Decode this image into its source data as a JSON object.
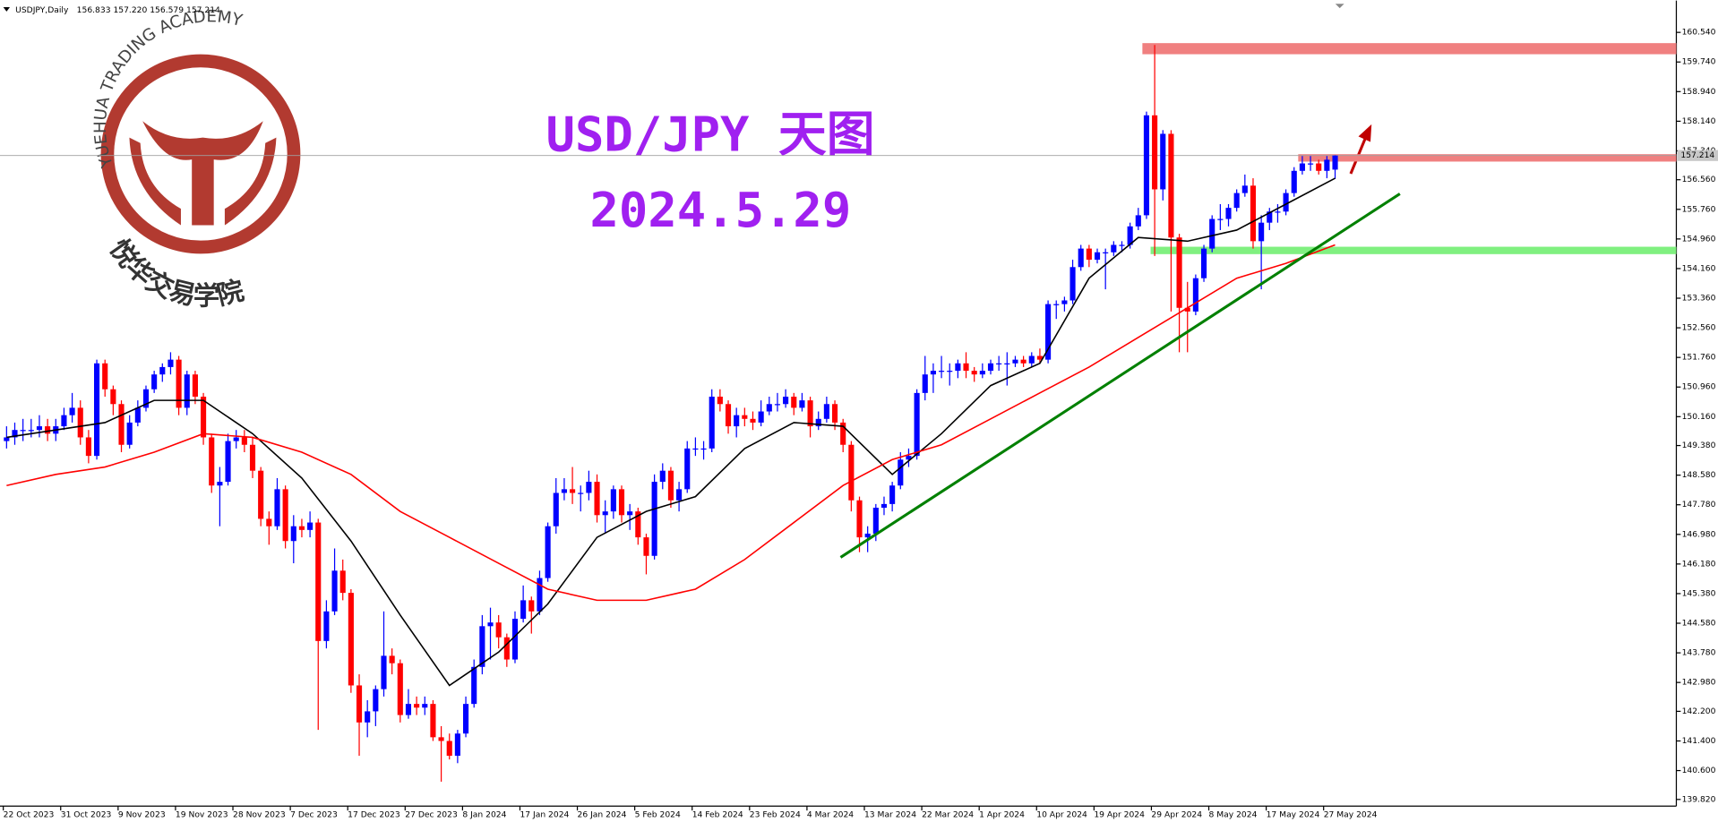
{
  "chart_data": {
    "type": "candlestick",
    "symbol": "USDJPY,Daily",
    "ohlc_label": "156.833 157.220 156.579 157.214",
    "title": "USD/JPY 天图",
    "subtitle": "2024.5.29",
    "watermark": {
      "arc_text": "YUEHUA TRADING ACADEMY",
      "cn_text": "悦华交易学院"
    },
    "up_color": "#0000ff",
    "down_color": "#ff0000",
    "categories": [
      "22 Oct 2023",
      null,
      null,
      null,
      null,
      null,
      null,
      "31 Oct 2023",
      null,
      null,
      null,
      null,
      null,
      null,
      "9 Nov 2023",
      null,
      null,
      null,
      null,
      null,
      null,
      "19 Nov 2023",
      null,
      null,
      null,
      null,
      null,
      null,
      "28 Nov 2023",
      null,
      null,
      null,
      null,
      null,
      null,
      "7 Dec 2023",
      null,
      null,
      null,
      null,
      null,
      null,
      "17 Dec 2023",
      null,
      null,
      null,
      null,
      null,
      null,
      "27 Dec 2023",
      null,
      null,
      null,
      null,
      null,
      null,
      "8 Jan 2024",
      null,
      null,
      null,
      null,
      null,
      null,
      "17 Jan 2024",
      null,
      null,
      null,
      null,
      null,
      null,
      "26 Jan 2024",
      null,
      null,
      null,
      null,
      null,
      null,
      "5 Feb 2024",
      null,
      null,
      null,
      null,
      null,
      null,
      "14 Feb 2024",
      null,
      null,
      null,
      null,
      null,
      null,
      "23 Feb 2024",
      null,
      null,
      null,
      null,
      null,
      null,
      "4 Mar 2024",
      null,
      null,
      null,
      null,
      null,
      null,
      "13 Mar 2024",
      null,
      null,
      null,
      null,
      null,
      null,
      "22 Mar 2024",
      null,
      null,
      null,
      null,
      null,
      null,
      "1 Apr 2024",
      null,
      null,
      null,
      null,
      null,
      null,
      "10 Apr 2024",
      null,
      null,
      null,
      null,
      null,
      null,
      "19 Apr 2024",
      null,
      null,
      null,
      null,
      null,
      null,
      "29 Apr 2024",
      null,
      null,
      null,
      null,
      null,
      null,
      "8 May 2024",
      null,
      null,
      null,
      null,
      null,
      null,
      "17 May 2024",
      null,
      null,
      null,
      null,
      null,
      null,
      "27 May 2024",
      null
    ],
    "candles": [
      [
        149.5,
        149.9,
        149.3,
        149.6
      ],
      [
        149.6,
        150.0,
        149.4,
        149.8
      ],
      [
        149.8,
        150.1,
        149.5,
        149.8
      ],
      [
        149.8,
        150.1,
        149.6,
        149.8
      ],
      [
        149.8,
        150.2,
        149.6,
        149.9
      ],
      [
        149.9,
        150.1,
        149.5,
        149.7
      ],
      [
        149.7,
        150.1,
        149.5,
        149.9
      ],
      [
        149.9,
        150.4,
        149.8,
        150.2
      ],
      [
        150.2,
        150.8,
        150.0,
        150.4
      ],
      [
        150.4,
        150.6,
        149.4,
        149.6
      ],
      [
        149.6,
        149.8,
        148.9,
        149.1
      ],
      [
        149.1,
        151.7,
        149.0,
        151.6
      ],
      [
        151.6,
        151.7,
        150.7,
        150.9
      ],
      [
        150.9,
        151.0,
        150.2,
        150.5
      ],
      [
        150.5,
        150.6,
        149.2,
        149.4
      ],
      [
        149.4,
        150.2,
        149.3,
        150.0
      ],
      [
        150.0,
        150.6,
        149.9,
        150.4
      ],
      [
        150.4,
        151.0,
        150.3,
        150.9
      ],
      [
        150.9,
        151.4,
        150.8,
        151.3
      ],
      [
        151.3,
        151.6,
        151.1,
        151.5
      ],
      [
        151.5,
        151.9,
        151.3,
        151.7
      ],
      [
        151.7,
        151.8,
        150.2,
        150.4
      ],
      [
        150.4,
        151.4,
        150.2,
        151.3
      ],
      [
        151.3,
        151.4,
        150.5,
        150.7
      ],
      [
        150.7,
        150.8,
        149.4,
        149.6
      ],
      [
        149.6,
        149.7,
        148.1,
        148.3
      ],
      [
        148.3,
        148.8,
        147.2,
        148.4
      ],
      [
        148.4,
        149.7,
        148.3,
        149.5
      ],
      [
        149.5,
        149.8,
        149.3,
        149.6
      ],
      [
        149.6,
        149.8,
        149.2,
        149.4
      ],
      [
        149.4,
        149.6,
        148.5,
        148.7
      ],
      [
        148.7,
        148.8,
        147.2,
        147.4
      ],
      [
        147.4,
        147.6,
        146.7,
        147.2
      ],
      [
        147.2,
        148.5,
        147.1,
        148.2
      ],
      [
        148.2,
        148.3,
        146.6,
        146.8
      ],
      [
        146.8,
        147.5,
        146.2,
        147.2
      ],
      [
        147.2,
        147.4,
        146.9,
        147.1
      ],
      [
        147.1,
        147.6,
        146.9,
        147.3
      ],
      [
        147.3,
        147.4,
        141.7,
        144.1
      ],
      [
        144.1,
        145.2,
        143.9,
        144.9
      ],
      [
        144.9,
        146.6,
        144.8,
        146.0
      ],
      [
        146.0,
        146.3,
        145.2,
        145.4
      ],
      [
        145.4,
        145.5,
        142.7,
        142.9
      ],
      [
        142.9,
        143.2,
        141.0,
        141.9
      ],
      [
        141.9,
        142.5,
        141.5,
        142.2
      ],
      [
        142.2,
        142.9,
        141.8,
        142.8
      ],
      [
        142.8,
        144.9,
        142.6,
        143.7
      ],
      [
        143.7,
        143.9,
        143.2,
        143.5
      ],
      [
        143.5,
        143.6,
        141.9,
        142.1
      ],
      [
        142.1,
        142.8,
        142.0,
        142.4
      ],
      [
        142.4,
        142.6,
        142.1,
        142.3
      ],
      [
        142.3,
        142.6,
        142.1,
        142.4
      ],
      [
        142.4,
        142.5,
        141.4,
        141.5
      ],
      [
        141.5,
        141.8,
        140.3,
        141.4
      ],
      [
        141.4,
        141.6,
        140.9,
        141.0
      ],
      [
        141.0,
        141.7,
        140.8,
        141.6
      ],
      [
        141.6,
        142.6,
        141.5,
        142.4
      ],
      [
        142.4,
        143.6,
        142.3,
        143.4
      ],
      [
        143.4,
        144.8,
        143.2,
        144.5
      ],
      [
        144.5,
        145.0,
        143.6,
        144.6
      ],
      [
        144.6,
        144.8,
        143.9,
        144.2
      ],
      [
        144.2,
        144.3,
        143.4,
        143.6
      ],
      [
        143.6,
        144.9,
        143.5,
        144.7
      ],
      [
        144.7,
        145.6,
        144.6,
        145.2
      ],
      [
        145.2,
        145.3,
        144.3,
        144.9
      ],
      [
        144.9,
        146.0,
        144.8,
        145.8
      ],
      [
        145.8,
        147.3,
        145.7,
        147.2
      ],
      [
        147.2,
        148.5,
        147.0,
        148.1
      ],
      [
        148.1,
        148.5,
        147.9,
        148.2
      ],
      [
        148.2,
        148.8,
        147.8,
        148.1
      ],
      [
        148.1,
        148.3,
        147.6,
        148.1
      ],
      [
        148.1,
        148.7,
        147.9,
        148.4
      ],
      [
        148.4,
        148.6,
        147.3,
        147.5
      ],
      [
        147.5,
        147.9,
        147.0,
        147.6
      ],
      [
        147.6,
        148.3,
        147.4,
        148.2
      ],
      [
        148.2,
        148.3,
        147.3,
        147.5
      ],
      [
        147.5,
        147.8,
        147.1,
        147.6
      ],
      [
        147.6,
        147.7,
        146.7,
        146.9
      ],
      [
        146.9,
        147.0,
        145.9,
        146.4
      ],
      [
        146.4,
        148.6,
        146.3,
        148.4
      ],
      [
        148.4,
        148.9,
        148.2,
        148.7
      ],
      [
        148.7,
        148.8,
        147.7,
        147.9
      ],
      [
        147.9,
        148.4,
        147.6,
        148.2
      ],
      [
        148.2,
        149.5,
        148.1,
        149.3
      ],
      [
        149.3,
        149.6,
        149.1,
        149.3
      ],
      [
        149.3,
        149.5,
        149.0,
        149.3
      ],
      [
        149.3,
        150.9,
        149.2,
        150.7
      ],
      [
        150.7,
        150.9,
        150.3,
        150.5
      ],
      [
        150.5,
        150.6,
        149.7,
        149.9
      ],
      [
        149.9,
        150.4,
        149.6,
        150.2
      ],
      [
        150.2,
        150.4,
        149.9,
        150.1
      ],
      [
        150.1,
        150.3,
        149.8,
        150.0
      ],
      [
        150.0,
        150.6,
        149.9,
        150.3
      ],
      [
        150.3,
        150.7,
        150.2,
        150.5
      ],
      [
        150.5,
        150.8,
        150.3,
        150.5
      ],
      [
        150.5,
        150.9,
        150.4,
        150.7
      ],
      [
        150.7,
        150.8,
        150.2,
        150.4
      ],
      [
        150.4,
        150.8,
        150.3,
        150.6
      ],
      [
        150.6,
        150.7,
        149.6,
        149.9
      ],
      [
        149.9,
        150.3,
        149.8,
        150.1
      ],
      [
        150.1,
        150.7,
        150.0,
        150.5
      ],
      [
        150.5,
        150.6,
        149.8,
        150.0
      ],
      [
        150.0,
        150.1,
        149.2,
        149.4
      ],
      [
        149.4,
        149.5,
        147.6,
        147.9
      ],
      [
        147.9,
        148.0,
        146.5,
        146.9
      ],
      [
        146.9,
        147.2,
        146.5,
        147.0
      ],
      [
        147.0,
        147.8,
        146.8,
        147.7
      ],
      [
        147.7,
        148.0,
        147.5,
        147.8
      ],
      [
        147.8,
        148.4,
        147.6,
        148.3
      ],
      [
        148.3,
        149.2,
        148.2,
        149.0
      ],
      [
        149.0,
        149.3,
        148.8,
        149.1
      ],
      [
        149.1,
        150.9,
        149.0,
        150.8
      ],
      [
        150.8,
        151.8,
        150.6,
        151.3
      ],
      [
        151.3,
        151.6,
        150.8,
        151.4
      ],
      [
        151.4,
        151.8,
        151.2,
        151.4
      ],
      [
        151.4,
        151.6,
        151.0,
        151.4
      ],
      [
        151.4,
        151.7,
        151.2,
        151.6
      ],
      [
        151.6,
        151.9,
        151.2,
        151.4
      ],
      [
        151.4,
        151.5,
        151.1,
        151.3
      ],
      [
        151.3,
        151.6,
        151.2,
        151.4
      ],
      [
        151.4,
        151.7,
        151.3,
        151.6
      ],
      [
        151.6,
        151.8,
        151.4,
        151.6
      ],
      [
        151.6,
        151.9,
        151.0,
        151.6
      ],
      [
        151.6,
        151.8,
        151.5,
        151.7
      ],
      [
        151.7,
        151.8,
        151.5,
        151.6
      ],
      [
        151.6,
        151.9,
        151.5,
        151.8
      ],
      [
        151.8,
        152.0,
        151.6,
        151.7
      ],
      [
        151.7,
        153.3,
        151.6,
        153.2
      ],
      [
        153.2,
        153.3,
        152.8,
        153.2
      ],
      [
        153.2,
        153.4,
        153.0,
        153.3
      ],
      [
        153.3,
        154.4,
        153.2,
        154.2
      ],
      [
        154.2,
        154.8,
        154.1,
        154.7
      ],
      [
        154.7,
        154.8,
        154.2,
        154.4
      ],
      [
        154.4,
        154.7,
        154.3,
        154.6
      ],
      [
        154.6,
        154.7,
        153.6,
        154.6
      ],
      [
        154.6,
        154.9,
        154.5,
        154.8
      ],
      [
        154.8,
        154.9,
        154.6,
        154.8
      ],
      [
        154.8,
        155.4,
        154.7,
        155.3
      ],
      [
        155.3,
        155.8,
        155.2,
        155.6
      ],
      [
        155.6,
        158.4,
        155.5,
        158.3
      ],
      [
        158.3,
        160.2,
        154.5,
        156.3
      ],
      [
        156.3,
        157.9,
        156.0,
        157.8
      ],
      [
        157.8,
        157.9,
        153.0,
        155.0
      ],
      [
        155.0,
        155.1,
        151.9,
        153.1
      ],
      [
        153.1,
        153.8,
        151.9,
        153.0
      ],
      [
        153.0,
        154.0,
        152.9,
        153.9
      ],
      [
        153.9,
        154.8,
        153.8,
        154.7
      ],
      [
        154.7,
        155.6,
        154.6,
        155.5
      ],
      [
        155.5,
        155.9,
        155.2,
        155.5
      ],
      [
        155.5,
        155.9,
        155.3,
        155.8
      ],
      [
        155.8,
        156.3,
        155.7,
        156.2
      ],
      [
        156.2,
        156.7,
        156.1,
        156.4
      ],
      [
        156.4,
        156.6,
        154.7,
        154.9
      ],
      [
        154.9,
        155.6,
        153.6,
        155.4
      ],
      [
        155.4,
        155.8,
        155.2,
        155.7
      ],
      [
        155.7,
        155.9,
        155.4,
        155.7
      ],
      [
        155.7,
        156.3,
        155.6,
        156.2
      ],
      [
        156.2,
        156.9,
        156.1,
        156.8
      ],
      [
        156.8,
        157.2,
        156.7,
        157.0
      ],
      [
        157.0,
        157.2,
        156.8,
        157.0
      ],
      [
        157.0,
        157.1,
        156.7,
        156.8
      ],
      [
        156.8,
        157.2,
        156.6,
        157.1
      ],
      [
        156.833,
        157.22,
        156.579,
        157.214
      ]
    ],
    "lines": [
      {
        "color": "#000000",
        "x": [
          0,
          6,
          12,
          18,
          24,
          30,
          36,
          42,
          48,
          54,
          60,
          66,
          72,
          78,
          84,
          90,
          96,
          102,
          108,
          114,
          120,
          126,
          132,
          138,
          144,
          150,
          156,
          162
        ],
        "values": [
          149.6,
          149.8,
          150.0,
          150.6,
          150.6,
          149.7,
          148.5,
          146.8,
          144.8,
          142.9,
          143.8,
          145.1,
          146.9,
          147.6,
          148.0,
          149.3,
          150.0,
          149.9,
          148.6,
          149.7,
          151.0,
          151.6,
          153.9,
          155.0,
          154.9,
          155.2,
          155.9,
          156.6
        ]
      },
      {
        "color": "#ff0000",
        "x": [
          0,
          6,
          12,
          18,
          24,
          30,
          36,
          42,
          48,
          54,
          60,
          66,
          72,
          78,
          84,
          90,
          96,
          102,
          108,
          114,
          120,
          126,
          132,
          138,
          144,
          150,
          156,
          162
        ],
        "values": [
          148.3,
          148.6,
          148.8,
          149.2,
          149.7,
          149.6,
          149.2,
          148.6,
          147.6,
          146.9,
          146.2,
          145.5,
          145.2,
          145.2,
          145.5,
          146.3,
          147.3,
          148.3,
          149.0,
          149.4,
          150.1,
          150.8,
          151.5,
          152.3,
          153.1,
          153.9,
          154.3,
          154.8
        ]
      }
    ],
    "trendline": {
      "color": "#008000",
      "x": [
        101.7,
        169.9
      ],
      "values": [
        146.36,
        156.18
      ]
    },
    "zones": [
      {
        "color": "#f08080",
        "x_start": 138.5,
        "range": [
          159.95,
          160.25
        ]
      },
      {
        "color": "#f08080",
        "x_start": 157.5,
        "range": [
          157.05,
          157.25
        ]
      },
      {
        "color": "#80f080",
        "x_start": 139.5,
        "range": [
          154.55,
          154.75
        ]
      }
    ],
    "ylim": [
      139.64,
      161.4
    ],
    "yticks": [
      {
        "value": 139.82,
        "label": "139.820"
      },
      {
        "value": 140.6,
        "label": "140.600"
      },
      {
        "value": 141.4,
        "label": "141.400"
      },
      {
        "value": 142.2,
        "label": "142.200"
      },
      {
        "value": 142.98,
        "label": "142.980"
      },
      {
        "value": 143.78,
        "label": "143.780"
      },
      {
        "value": 144.58,
        "label": "144.580"
      },
      {
        "value": 145.38,
        "label": "145.380"
      },
      {
        "value": 146.18,
        "label": "146.180"
      },
      {
        "value": 146.98,
        "label": "146.980"
      },
      {
        "value": 147.78,
        "label": "147.780"
      },
      {
        "value": 148.58,
        "label": "148.580"
      },
      {
        "value": 149.38,
        "label": "149.380"
      },
      {
        "value": 150.16,
        "label": "150.160"
      },
      {
        "value": 150.96,
        "label": "150.960"
      },
      {
        "value": 151.76,
        "label": "151.760"
      },
      {
        "value": 152.56,
        "label": "152.560"
      },
      {
        "value": 153.36,
        "label": "153.360"
      },
      {
        "value": 154.16,
        "label": "154.160"
      },
      {
        "value": 154.96,
        "label": "154.960"
      },
      {
        "value": 155.76,
        "label": "155.760"
      },
      {
        "value": 156.56,
        "label": "156.560"
      },
      {
        "value": 157.34,
        "label": "157.340"
      },
      {
        "value": 158.14,
        "label": "158.140"
      },
      {
        "value": 158.94,
        "label": "158.940"
      },
      {
        "value": 159.74,
        "label": "159.740"
      },
      {
        "value": 160.54,
        "label": "160.540"
      }
    ],
    "price_line": 157.214
  }
}
